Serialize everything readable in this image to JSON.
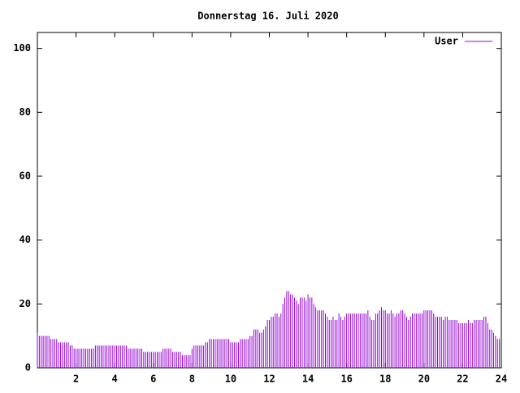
{
  "chart_data": {
    "type": "impulse",
    "title": "Donnerstag 16. Juli 2020",
    "x": [
      0,
      0.1,
      0.2,
      0.3,
      0.4,
      0.5,
      0.6,
      0.7,
      0.8,
      0.9,
      1,
      1.1,
      1.2,
      1.3,
      1.4,
      1.5,
      1.6,
      1.7,
      1.8,
      1.9,
      2,
      2.1,
      2.2,
      2.3,
      2.4,
      2.5,
      2.6,
      2.7,
      2.8,
      2.9,
      3,
      3.1,
      3.2,
      3.3,
      3.4,
      3.5,
      3.6,
      3.7,
      3.8,
      3.9,
      4,
      4.1,
      4.2,
      4.3,
      4.4,
      4.5,
      4.6,
      4.7,
      4.8,
      4.9,
      5,
      5.1,
      5.2,
      5.3,
      5.4,
      5.5,
      5.6,
      5.7,
      5.8,
      5.9,
      6,
      6.1,
      6.2,
      6.3,
      6.4,
      6.5,
      6.6,
      6.7,
      6.8,
      6.9,
      7,
      7.1,
      7.2,
      7.3,
      7.4,
      7.5,
      7.6,
      7.7,
      7.8,
      7.9,
      8,
      8.1,
      8.2,
      8.3,
      8.4,
      8.5,
      8.6,
      8.7,
      8.8,
      8.9,
      9,
      9.1,
      9.2,
      9.3,
      9.4,
      9.5,
      9.6,
      9.7,
      9.8,
      9.9,
      10,
      10.1,
      10.2,
      10.3,
      10.4,
      10.5,
      10.6,
      10.7,
      10.8,
      10.9,
      11,
      11.1,
      11.2,
      11.3,
      11.4,
      11.5,
      11.6,
      11.7,
      11.8,
      11.9,
      12,
      12.1,
      12.2,
      12.3,
      12.4,
      12.5,
      12.6,
      12.7,
      12.8,
      12.9,
      13,
      13.1,
      13.2,
      13.3,
      13.4,
      13.5,
      13.6,
      13.7,
      13.8,
      13.9,
      14,
      14.1,
      14.2,
      14.3,
      14.4,
      14.5,
      14.6,
      14.7,
      14.8,
      14.9,
      15,
      15.1,
      15.2,
      15.3,
      15.4,
      15.5,
      15.6,
      15.7,
      15.8,
      15.9,
      16,
      16.1,
      16.2,
      16.3,
      16.4,
      16.5,
      16.6,
      16.7,
      16.8,
      16.9,
      17,
      17.1,
      17.2,
      17.3,
      17.4,
      17.5,
      17.6,
      17.7,
      17.8,
      17.9,
      18,
      18.1,
      18.2,
      18.3,
      18.4,
      18.5,
      18.6,
      18.7,
      18.8,
      18.9,
      19,
      19.1,
      19.2,
      19.3,
      19.4,
      19.5,
      19.6,
      19.7,
      19.8,
      19.9,
      20,
      20.1,
      20.2,
      20.3,
      20.4,
      20.5,
      20.6,
      20.7,
      20.8,
      20.9,
      21,
      21.1,
      21.2,
      21.3,
      21.4,
      21.5,
      21.6,
      21.7,
      21.8,
      21.9,
      22,
      22.1,
      22.2,
      22.3,
      22.4,
      22.5,
      22.6,
      22.7,
      22.8,
      22.9,
      23,
      23.1,
      23.2,
      23.3,
      23.4,
      23.5,
      23.6,
      23.7,
      23.8,
      23.9
    ],
    "series": [
      {
        "name": "User",
        "color": "#9400d3",
        "values": [
          11,
          10,
          10,
          10,
          10,
          10,
          10,
          9,
          9,
          9,
          9,
          8,
          8,
          8,
          8,
          8,
          8,
          7,
          7,
          6,
          6,
          6,
          6,
          6,
          6,
          6,
          6,
          6,
          6,
          6,
          7,
          7,
          7,
          7,
          7,
          7,
          7,
          7,
          7,
          7,
          7,
          7,
          7,
          7,
          7,
          7,
          7,
          6,
          6,
          6,
          6,
          6,
          6,
          6,
          6,
          5,
          5,
          5,
          5,
          5,
          5,
          5,
          5,
          5,
          5,
          6,
          6,
          6,
          6,
          6,
          5,
          5,
          5,
          5,
          5,
          4,
          4,
          4,
          4,
          4,
          6,
          7,
          7,
          7,
          7,
          7,
          7,
          8,
          8,
          9,
          9,
          9,
          9,
          9,
          9,
          9,
          9,
          9,
          9,
          9,
          8,
          8,
          8,
          8,
          8,
          9,
          9,
          9,
          9,
          9,
          10,
          10,
          12,
          12,
          12,
          11,
          11,
          12,
          13,
          15,
          15,
          16,
          16,
          17,
          17,
          16,
          17,
          20,
          22,
          24,
          24,
          23,
          23,
          22,
          21,
          20,
          22,
          22,
          22,
          21,
          23,
          22,
          22,
          20,
          19,
          18,
          18,
          18,
          18,
          17,
          16,
          15,
          15,
          16,
          15,
          15,
          17,
          16,
          15,
          16,
          17,
          17,
          17,
          17,
          17,
          17,
          17,
          17,
          17,
          17,
          17,
          18,
          16,
          15,
          15,
          17,
          17,
          18,
          19,
          18,
          18,
          17,
          17,
          18,
          17,
          16,
          17,
          17,
          18,
          18,
          17,
          16,
          15,
          16,
          17,
          17,
          17,
          17,
          17,
          17,
          18,
          18,
          18,
          18,
          18,
          17,
          16,
          16,
          16,
          16,
          15,
          16,
          16,
          15,
          15,
          15,
          15,
          15,
          14,
          14,
          14,
          14,
          14,
          15,
          14,
          14,
          15,
          15,
          15,
          15,
          15,
          16,
          16,
          14,
          12,
          12,
          11,
          10,
          9,
          9
        ]
      }
    ],
    "xlim": [
      0,
      24
    ],
    "xticks": [
      2,
      4,
      6,
      8,
      10,
      12,
      14,
      16,
      18,
      20,
      22,
      24
    ],
    "ylim": [
      0,
      105
    ],
    "yticks": [
      0,
      20,
      40,
      60,
      80,
      100
    ],
    "legend": "top-right"
  }
}
